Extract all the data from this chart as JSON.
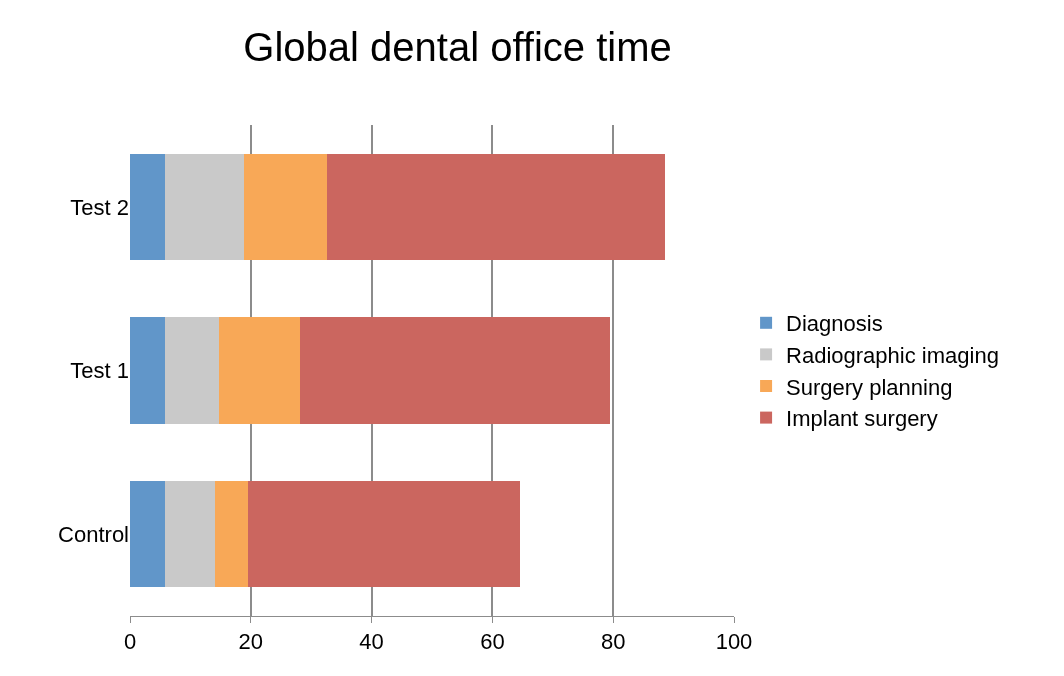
{
  "chart_data": {
    "type": "bar",
    "orientation": "horizontal",
    "stacked": true,
    "title": "Global dental office time",
    "categories": [
      "Test 2",
      "Test 1",
      "Control"
    ],
    "series": [
      {
        "name": "Diagnosis",
        "color": "#6196c9",
        "values": [
          5.8,
          5.8,
          5.8
        ]
      },
      {
        "name": "Radiographic imaging",
        "color": "#c9c9c9",
        "values": [
          13.1,
          9.0,
          8.2
        ]
      },
      {
        "name": "Surgery planning",
        "color": "#f8a857",
        "values": [
          13.7,
          13.4,
          5.5
        ]
      },
      {
        "name": "Implant surgery",
        "color": "#cb665f",
        "values": [
          56.0,
          51.2,
          45.0
        ]
      }
    ],
    "xlim": [
      0,
      100
    ],
    "xticks": [
      0,
      20,
      40,
      60,
      80,
      100
    ],
    "grid": "x",
    "legend": "right"
  }
}
